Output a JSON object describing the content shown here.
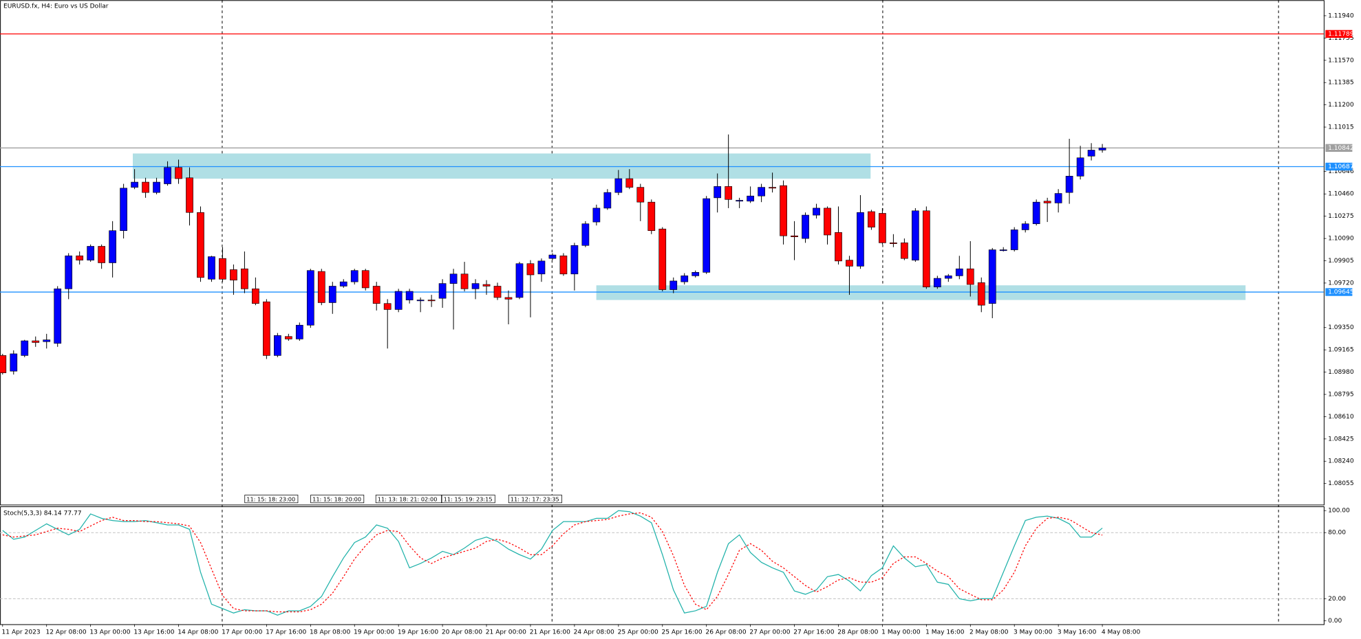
{
  "chart_data": [
    {
      "type": "candlestick",
      "title": "EURUSD.fx, H4:  Euro vs US Dollar",
      "open": [
        1.09118,
        1.08988,
        1.09118,
        1.0924,
        1.09233,
        1.09219,
        1.09672,
        1.09946,
        1.0991,
        1.10025,
        1.09888,
        1.10155,
        1.10515,
        1.10558,
        1.10472,
        1.10544,
        1.1068,
        1.10594,
        1.10306,
        1.09752,
        1.09924,
        1.09831,
        1.09838,
        1.09672,
        1.09564,
        1.09118,
        1.09276,
        1.09255,
        1.0937,
        1.09816,
        1.09557,
        1.09694,
        1.0973,
        1.09824,
        1.09694,
        1.0955,
        1.095,
        1.09579,
        1.09572,
        1.09579,
        1.09593,
        1.09716,
        1.09795,
        1.09672,
        1.09708,
        1.09694,
        1.096,
        1.096,
        1.09881,
        1.09795,
        1.09924,
        1.09946,
        1.09795,
        1.10032,
        1.10227,
        1.10342,
        1.10472,
        1.10587,
        1.10515,
        1.10392,
        1.10169,
        1.09665,
        1.0973,
        1.0978,
        1.09809,
        1.10428,
        1.10522,
        1.104,
        1.104,
        1.10443,
        1.10515,
        1.10529,
        1.10112,
        1.1009,
        1.10284,
        1.10342,
        1.1014,
        1.0991,
        1.0986,
        1.10313,
        1.10299,
        1.10054,
        1.10054,
        1.0991,
        1.1032,
        1.09687,
        1.09759,
        1.0978,
        1.09838,
        1.09723,
        1.0955,
        1.09989,
        1.09996,
        1.10162,
        1.10212,
        1.104,
        1.10385,
        1.10472,
        1.10608,
        1.10774,
        1.10824
      ],
      "high": [
        1.09132,
        1.09161,
        1.09248,
        1.09276,
        1.09298,
        1.09694,
        1.09968,
        1.09982,
        1.1004,
        1.1004,
        1.10234,
        1.10544,
        1.10666,
        1.10594,
        1.10594,
        1.10731,
        1.10745,
        1.1068,
        1.10356,
        1.09946,
        1.10018,
        1.09874,
        1.09982,
        1.09766,
        1.09586,
        1.09305,
        1.09298,
        1.09392,
        1.09838,
        1.09838,
        1.0973,
        1.09752,
        1.09838,
        1.09838,
        1.0973,
        1.09586,
        1.09672,
        1.09672,
        1.096,
        1.09622,
        1.09752,
        1.09838,
        1.09896,
        1.09752,
        1.09744,
        1.09723,
        1.09658,
        1.09896,
        1.0991,
        1.09924,
        1.09968,
        1.09968,
        1.10054,
        1.10234,
        1.10371,
        1.105,
        1.10659,
        1.10666,
        1.10544,
        1.10414,
        1.10184,
        1.09766,
        1.09802,
        1.09824,
        1.10443,
        1.1063,
        1.10954,
        1.10428,
        1.10522,
        1.10544,
        1.10637,
        1.10572,
        1.10234,
        1.10306,
        1.10378,
        1.10356,
        1.10356,
        1.09946,
        1.1045,
        1.10328,
        1.10342,
        1.10126,
        1.1009,
        1.10342,
        1.10356,
        1.0978,
        1.09795,
        1.09946,
        1.10068,
        1.09766,
        1.10011,
        1.10018,
        1.10184,
        1.10234,
        1.10414,
        1.10428,
        1.105,
        1.10918,
        1.1086,
        1.10882,
        1.10875
      ],
      "low": [
        1.0896,
        1.0896,
        1.09104,
        1.0919,
        1.09176,
        1.0919,
        1.09586,
        1.09874,
        1.09896,
        1.09838,
        1.09766,
        1.1009,
        1.105,
        1.10428,
        1.10457,
        1.10529,
        1.10544,
        1.10198,
        1.0973,
        1.0973,
        1.0973,
        1.09622,
        1.09636,
        1.09536,
        1.09089,
        1.09104,
        1.0924,
        1.0924,
        1.09348,
        1.09536,
        1.09464,
        1.0968,
        1.09708,
        1.09658,
        1.09492,
        1.09176,
        1.09478,
        1.0955,
        1.09478,
        1.09521,
        1.09514,
        1.09334,
        1.09651,
        1.09586,
        1.09622,
        1.09579,
        1.09377,
        1.09586,
        1.09435,
        1.0973,
        1.0991,
        1.0978,
        1.09658,
        1.10018,
        1.10198,
        1.10328,
        1.1045,
        1.105,
        1.10234,
        1.10126,
        1.09651,
        1.09636,
        1.09708,
        1.09766,
        1.09795,
        1.10306,
        1.10342,
        1.10342,
        1.10385,
        1.10392,
        1.10472,
        1.1004,
        1.0991,
        1.10054,
        1.10256,
        1.1004,
        1.09874,
        1.09622,
        1.09838,
        1.10162,
        1.1004,
        1.10018,
        1.0991,
        1.09896,
        1.09672,
        1.09672,
        1.0973,
        1.09752,
        1.09608,
        1.09478,
        1.09428,
        1.09982,
        1.09982,
        1.1014,
        1.10198,
        1.10227,
        1.10306,
        1.10378,
        1.1058,
        1.10738,
        1.10803
      ],
      "close": [
        1.08974,
        1.09132,
        1.0924,
        1.09226,
        1.09248,
        1.09672,
        1.09946,
        1.0991,
        1.10025,
        1.09888,
        1.10155,
        1.10508,
        1.10558,
        1.10472,
        1.10558,
        1.1068,
        1.10587,
        1.10306,
        1.09766,
        1.09939,
        1.09752,
        1.09744,
        1.09672,
        1.0955,
        1.09118,
        1.09284,
        1.09255,
        1.0937,
        1.09824,
        1.09557,
        1.09694,
        1.0973,
        1.09824,
        1.0968,
        1.0955,
        1.095,
        1.09651,
        1.09651,
        1.09579,
        1.09572,
        1.09716,
        1.09795,
        1.09672,
        1.09716,
        1.09694,
        1.096,
        1.09586,
        1.09881,
        1.09788,
        1.09903,
        1.09953,
        1.09795,
        1.10032,
        1.10212,
        1.10342,
        1.10472,
        1.10587,
        1.10515,
        1.10392,
        1.10155,
        1.09665,
        1.09737,
        1.0978,
        1.09809,
        1.10421,
        1.10522,
        1.10414,
        1.10407,
        1.10443,
        1.10515,
        1.10508,
        1.10112,
        1.10104,
        1.10284,
        1.10342,
        1.10119,
        1.09903,
        1.0986,
        1.10306,
        1.10184,
        1.10054,
        1.10047,
        1.09924,
        1.1032,
        1.09687,
        1.09759,
        1.0978,
        1.09838,
        1.09708,
        1.09536,
        1.09996,
        1.09996,
        1.10162,
        1.10212,
        1.10392,
        1.10385,
        1.10464,
        1.10608,
        1.1076,
        1.10824,
        1.10842
      ],
      "up_color": "#0000ff",
      "down_color": "#ff0000",
      "x_labels": [
        "11 Apr 2023",
        "12 Apr 08:00",
        "13 Apr 00:00",
        "13 Apr 16:00",
        "14 Apr 08:00",
        "17 Apr 00:00",
        "17 Apr 16:00",
        "18 Apr 08:00",
        "19 Apr 00:00",
        "19 Apr 16:00",
        "20 Apr 08:00",
        "21 Apr 00:00",
        "21 Apr 16:00",
        "24 Apr 08:00",
        "25 Apr 00:00",
        "25 Apr 16:00",
        "26 Apr 08:00",
        "27 Apr 00:00",
        "27 Apr 16:00",
        "28 Apr 08:00",
        "1 May 00:00",
        "1 May 16:00",
        "2 May 08:00",
        "3 May 00:00",
        "3 May 16:00",
        "4 May 08:00"
      ],
      "ylim": [
        1.0788,
        1.1207
      ],
      "yticks": [
        {
          "value": 1.1194,
          "label": "1.11940"
        },
        {
          "value": 1.11755,
          "label": "1.11755"
        },
        {
          "value": 1.1157,
          "label": "1.11570"
        },
        {
          "value": 1.11385,
          "label": "1.11385"
        },
        {
          "value": 1.112,
          "label": "1.11200"
        },
        {
          "value": 1.11015,
          "label": "1.11015"
        },
        {
          "value": 1.10646,
          "label": "1.10646"
        },
        {
          "value": 1.1046,
          "label": "1.10460"
        },
        {
          "value": 1.10275,
          "label": "1.10275"
        },
        {
          "value": 1.1009,
          "label": "1.10090"
        },
        {
          "value": 1.09905,
          "label": "1.09905"
        },
        {
          "value": 1.0972,
          "label": "1.09720"
        },
        {
          "value": 1.0935,
          "label": "1.09350"
        },
        {
          "value": 1.09165,
          "label": "1.09165"
        },
        {
          "value": 1.0898,
          "label": "1.08980"
        },
        {
          "value": 1.08795,
          "label": "1.08795"
        },
        {
          "value": 1.0861,
          "label": "1.08610"
        },
        {
          "value": 1.08425,
          "label": "1.08425"
        },
        {
          "value": 1.0824,
          "label": "1.08240"
        },
        {
          "value": 1.08055,
          "label": "1.08055"
        }
      ],
      "levels": [
        {
          "value": 1.11789,
          "color": "#ff0000"
        },
        {
          "value": 1.10842,
          "color": "#a0a0a0"
        },
        {
          "value": 1.10687,
          "color": "#1e90ff"
        },
        {
          "value": 1.09645,
          "color": "#1e90ff"
        }
      ],
      "zones": [
        {
          "top": 1.10796,
          "bottom": 1.10587,
          "color": "#b0dfe5"
        },
        {
          "top": 1.09701,
          "bottom": 1.09579,
          "color": "#b0dfe5"
        }
      ],
      "session_labels": [
        "11: 15: 18: 23:00",
        "11: 15: 18: 20:00",
        "11: 13: 18: 21: 02:00",
        "11: 15: 19: 23:15",
        "11: 12: 17: 23:35"
      ]
    },
    {
      "type": "line",
      "title": "Stoch(5,3,3) 84.14 77.77",
      "series": [
        {
          "name": "Main",
          "color": "#20b2aa",
          "values": [
            82,
            74,
            76,
            82,
            88,
            83,
            78,
            83,
            97,
            93,
            91,
            90,
            90,
            91,
            89,
            87,
            87,
            83,
            44,
            15,
            11,
            7,
            10,
            9,
            9,
            5,
            9,
            9,
            13,
            22,
            40,
            57,
            71,
            76,
            87,
            84,
            72,
            48,
            52,
            57,
            63,
            60,
            66,
            73,
            76,
            72,
            65,
            60,
            56,
            65,
            82,
            90,
            90,
            90,
            93,
            93,
            100,
            99,
            95,
            89,
            60,
            28,
            7,
            9,
            13,
            44,
            70,
            78,
            62,
            53,
            48,
            44,
            27,
            24,
            28,
            40,
            42,
            36,
            27,
            41,
            48,
            68,
            57,
            49,
            51,
            35,
            33,
            20,
            18,
            20,
            20,
            44,
            68,
            91,
            94,
            95,
            93,
            88,
            76,
            76,
            84.14
          ]
        },
        {
          "name": "Signal",
          "color": "#ff0000",
          "values": [
            78,
            76,
            77,
            78,
            81,
            84,
            83,
            81,
            86,
            91,
            94,
            91,
            91,
            90,
            90,
            89,
            88,
            86,
            71,
            47,
            23,
            11,
            9,
            9,
            9,
            8,
            8,
            8,
            10,
            15,
            25,
            40,
            56,
            68,
            78,
            82,
            81,
            68,
            57,
            52,
            57,
            60,
            63,
            66,
            72,
            74,
            71,
            66,
            60,
            60,
            68,
            79,
            87,
            90,
            91,
            92,
            95,
            97,
            98,
            94,
            81,
            59,
            32,
            15,
            10,
            22,
            42,
            64,
            70,
            64,
            54,
            48,
            40,
            32,
            26,
            31,
            37,
            39,
            35,
            35,
            39,
            52,
            58,
            58,
            52,
            45,
            40,
            29,
            24,
            19,
            19,
            28,
            44,
            68,
            84,
            93,
            94,
            92,
            86,
            80,
            77.77
          ]
        }
      ],
      "ylim": [
        -3.15,
        103.94
      ],
      "yticks": [
        {
          "value": 100,
          "label": "100.00"
        },
        {
          "value": 80,
          "label": "80.00"
        },
        {
          "value": 20,
          "label": "20.00"
        },
        {
          "value": 0,
          "label": "0.00"
        }
      ],
      "levels": [
        80,
        20
      ]
    }
  ]
}
